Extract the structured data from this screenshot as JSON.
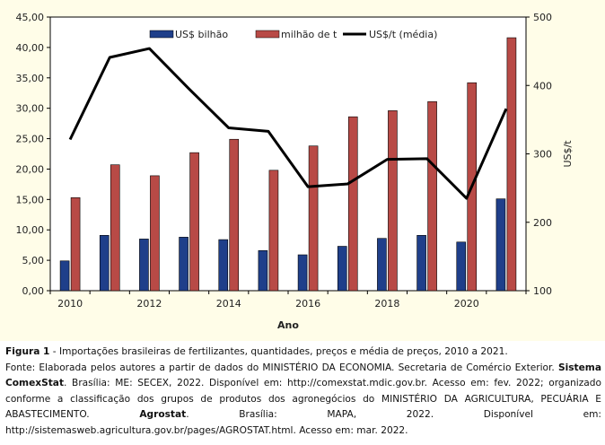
{
  "chart_data": {
    "type": "bar+line",
    "categories": [
      "2010",
      "2011",
      "2012",
      "2013",
      "2014",
      "2015",
      "2016",
      "2017",
      "2018",
      "2019",
      "2020",
      "2021"
    ],
    "x_tick_labels": [
      "2010",
      "2012",
      "2014",
      "2016",
      "2018",
      "2020"
    ],
    "xlabel": "Ano",
    "ylabel_right": "US$/t",
    "ylim_left": [
      0,
      45
    ],
    "ylim_right": [
      100,
      500
    ],
    "yticks_left": [
      "0,00",
      "5,00",
      "10,00",
      "15,00",
      "20,00",
      "25,00",
      "30,00",
      "35,00",
      "40,00",
      "45,00"
    ],
    "yticks_right": [
      "100",
      "200",
      "300",
      "400",
      "500"
    ],
    "series": [
      {
        "name": "US$ bilhão",
        "axis": "left",
        "kind": "bar",
        "color": "#1f3f8a",
        "values": [
          4.9,
          9.1,
          8.5,
          8.8,
          8.4,
          6.6,
          5.9,
          7.3,
          8.6,
          9.1,
          8.0,
          15.1
        ]
      },
      {
        "name": "milhão de t",
        "axis": "left",
        "kind": "bar",
        "color": "#b84a46",
        "values": [
          15.3,
          20.7,
          18.9,
          22.7,
          24.9,
          19.8,
          23.8,
          28.6,
          29.6,
          31.1,
          34.2,
          41.6
        ]
      },
      {
        "name": "US$/t (média)",
        "axis": "right",
        "kind": "line",
        "color": "#000000",
        "values": [
          321,
          441,
          454,
          395,
          338,
          333,
          252,
          256,
          292,
          293,
          235,
          366
        ]
      }
    ],
    "grid": false,
    "legend_position": "top"
  },
  "caption": {
    "figure_label": "Figura 1",
    "figure_text": " - Importações brasileiras de fertilizantes, quantidades, preços e média de preços, 2010 a 2021.",
    "source_1": "Fonte: Elaborada pelos autores a partir de dados do MINISTÉRIO DA ECONOMIA. Secretaria de Comércio Exterior. ",
    "source_bold_1": "Sistema ComexStat",
    "source_2": ". Brasília: ME: SECEX, 2022. Disponível em: http://comexstat.mdic.gov.br. Acesso em: fev. 2022; organizado conforme a classificação dos grupos de produtos dos agronegócios do MINISTÉRIO DA AGRICULTURA, PECUÁRIA E ABASTECIMENTO. ",
    "source_bold_2": "Agrostat",
    "source_3": ". Brasília: MAPA, 2022. Disponível em: http://sistemasweb.agricultura.gov.br/pages/AGROSTAT.html. Acesso em: mar. 2022."
  }
}
